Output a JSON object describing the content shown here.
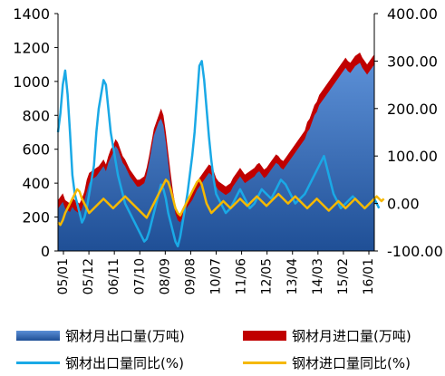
{
  "chart_data": {
    "type": "area+line",
    "title": "",
    "x_tick_labels": [
      "05/01",
      "05/12",
      "06/11",
      "07/10",
      "08/09",
      "09/08",
      "10/07",
      "11/06",
      "12/05",
      "13/04",
      "14/03",
      "15/02",
      "16/01"
    ],
    "left_axis": {
      "ylim": [
        0,
        1400
      ],
      "ticks": [
        "0",
        "200",
        "400",
        "600",
        "800",
        "1000",
        "1200",
        "1400"
      ]
    },
    "right_axis": {
      "ylim": [
        -100,
        400
      ],
      "ticks": [
        "-100.00",
        "0.00",
        "100.00",
        "200.00",
        "300.00",
        "400.00"
      ]
    },
    "series": [
      {
        "name": "钢材月出口量(万吨)",
        "axis": "left",
        "kind": "area",
        "color": "#2e5fa8",
        "values": [
          250,
          270,
          290,
          250,
          240,
          230,
          260,
          240,
          230,
          220,
          250,
          300,
          350,
          400,
          420,
          430,
          440,
          460,
          480,
          500,
          470,
          520,
          550,
          580,
          620,
          600,
          560,
          520,
          500,
          470,
          440,
          420,
          400,
          380,
          380,
          390,
          400,
          450,
          520,
          600,
          680,
          720,
          760,
          780,
          740,
          640,
          520,
          400,
          300,
          220,
          180,
          170,
          200,
          230,
          260,
          280,
          300,
          330,
          360,
          380,
          400,
          420,
          440,
          460,
          450,
          420,
          380,
          360,
          350,
          340,
          330,
          340,
          350,
          380,
          400,
          420,
          440,
          420,
          400,
          410,
          420,
          430,
          440,
          460,
          470,
          450,
          430,
          440,
          460,
          480,
          500,
          520,
          510,
          490,
          480,
          500,
          520,
          540,
          560,
          580,
          600,
          620,
          640,
          660,
          700,
          720,
          760,
          800,
          820,
          860,
          880,
          900,
          920,
          940,
          960,
          980,
          1000,
          1020,
          1040,
          1060,
          1080,
          1060,
          1050,
          1070,
          1090,
          1100,
          1110,
          1080,
          1060,
          1040,
          1060,
          1080,
          1100
        ]
      },
      {
        "name": "钢材月进口量(万吨)",
        "axis": "left",
        "kind": "area",
        "color": "#c00000",
        "values": [
          300,
          320,
          340,
          300,
          290,
          280,
          320,
          300,
          290,
          280,
          310,
          350,
          420,
          460,
          470,
          480,
          490,
          500,
          520,
          540,
          510,
          560,
          600,
          620,
          660,
          640,
          600,
          560,
          540,
          510,
          480,
          460,
          440,
          420,
          420,
          430,
          440,
          490,
          560,
          640,
          720,
          760,
          800,
          840,
          800,
          700,
          580,
          460,
          350,
          270,
          230,
          220,
          250,
          280,
          310,
          330,
          350,
          380,
          410,
          430,
          450,
          470,
          490,
          510,
          500,
          470,
          430,
          410,
          400,
          390,
          380,
          390,
          400,
          430,
          450,
          470,
          490,
          470,
          450,
          460,
          470,
          480,
          490,
          510,
          520,
          500,
          480,
          490,
          510,
          530,
          550,
          570,
          560,
          540,
          530,
          550,
          570,
          590,
          610,
          630,
          650,
          670,
          690,
          710,
          760,
          780,
          820,
          860,
          880,
          920,
          940,
          960,
          980,
          1000,
          1020,
          1040,
          1060,
          1080,
          1100,
          1120,
          1140,
          1120,
          1110,
          1130,
          1150,
          1160,
          1170,
          1140,
          1120,
          1100,
          1120,
          1140,
          1160
        ]
      },
      {
        "name": "钢材出口量同比(%)",
        "axis": "right",
        "kind": "line",
        "color": "#1aa9e6",
        "values": [
          150,
          190,
          250,
          280,
          230,
          150,
          60,
          20,
          0,
          -20,
          -40,
          -30,
          -10,
          20,
          50,
          80,
          150,
          200,
          230,
          260,
          250,
          200,
          150,
          120,
          90,
          60,
          40,
          20,
          0,
          -10,
          -20,
          -30,
          -40,
          -50,
          -60,
          -70,
          -80,
          -75,
          -60,
          -40,
          -20,
          0,
          20,
          40,
          30,
          10,
          -20,
          -40,
          -60,
          -80,
          -90,
          -70,
          -40,
          -10,
          20,
          60,
          100,
          150,
          220,
          290,
          300,
          260,
          200,
          140,
          90,
          50,
          20,
          10,
          0,
          -10,
          -20,
          -15,
          -10,
          0,
          10,
          20,
          30,
          20,
          10,
          0,
          -10,
          -5,
          0,
          10,
          20,
          30,
          25,
          20,
          15,
          10,
          20,
          30,
          40,
          50,
          45,
          40,
          30,
          20,
          10,
          0,
          5,
          10,
          15,
          20,
          30,
          40,
          50,
          60,
          70,
          80,
          90,
          100,
          80,
          60,
          40,
          20,
          10,
          0,
          -10,
          -5,
          0,
          5,
          10,
          15,
          10,
          5,
          0,
          -5,
          -10,
          -5,
          0,
          5,
          10,
          0,
          -10
        ]
      },
      {
        "name": "钢材进口量同比(%)",
        "axis": "right",
        "kind": "line",
        "color": "#f5b800",
        "values": [
          -40,
          -45,
          -35,
          -20,
          -10,
          0,
          10,
          20,
          30,
          25,
          10,
          0,
          -10,
          -20,
          -15,
          -10,
          -5,
          0,
          5,
          10,
          5,
          0,
          -5,
          -10,
          -5,
          0,
          5,
          10,
          15,
          10,
          5,
          0,
          -5,
          -10,
          -15,
          -20,
          -25,
          -30,
          -20,
          -10,
          0,
          10,
          20,
          30,
          40,
          50,
          45,
          30,
          10,
          -10,
          -20,
          -25,
          -15,
          -5,
          5,
          15,
          25,
          35,
          45,
          50,
          40,
          20,
          0,
          -10,
          -20,
          -15,
          -10,
          -5,
          0,
          5,
          0,
          -5,
          -10,
          -5,
          0,
          5,
          10,
          5,
          0,
          -5,
          0,
          5,
          10,
          15,
          10,
          5,
          0,
          -5,
          0,
          5,
          10,
          15,
          20,
          15,
          10,
          5,
          0,
          5,
          10,
          15,
          10,
          5,
          0,
          -5,
          -10,
          -5,
          0,
          5,
          10,
          5,
          0,
          -5,
          -10,
          -15,
          -10,
          -5,
          0,
          5,
          0,
          -5,
          -10,
          -5,
          0,
          5,
          10,
          5,
          0,
          -5,
          -10,
          -5,
          0,
          5,
          10,
          15,
          10,
          5,
          10
        ]
      }
    ],
    "legend_position": "bottom",
    "grid": false
  }
}
